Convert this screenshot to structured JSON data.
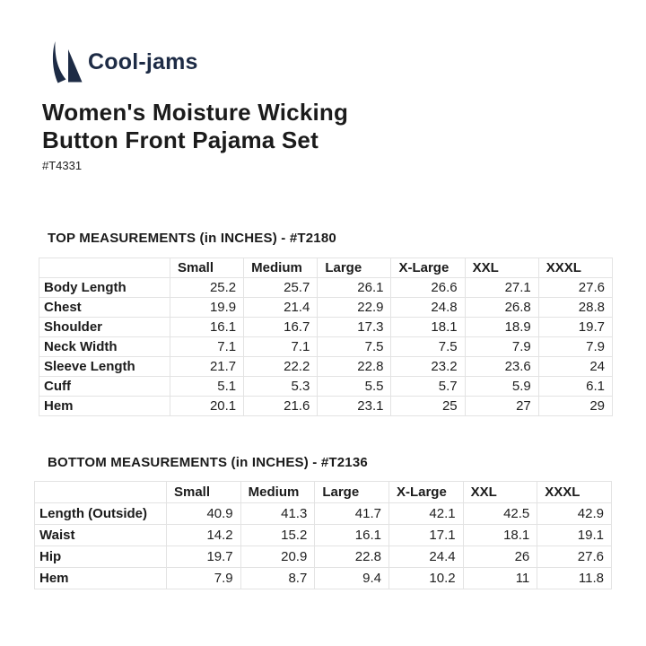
{
  "brand": {
    "name": "Cool-jams",
    "logo_icon": "sailboat-icon",
    "logo_color": "#1d2b45"
  },
  "product": {
    "title_line1": "Women's Moisture Wicking",
    "title_line2": "Button Front Pajama Set",
    "sku": "#T4331"
  },
  "colors": {
    "accent_navy": "#1d2b45",
    "text": "#1c1c1c",
    "table_border": "#e3e3e3",
    "background": "#ffffff"
  },
  "tables": [
    {
      "heading": "TOP MEASUREMENTS (in INCHES) - #T2180",
      "columns": [
        "",
        "Small",
        "Medium",
        "Large",
        "X-Large",
        "XXL",
        "XXXL"
      ],
      "rows": [
        {
          "label": "Body Length",
          "values": [
            "25.2",
            "25.7",
            "26.1",
            "26.6",
            "27.1",
            "27.6"
          ]
        },
        {
          "label": "Chest",
          "values": [
            "19.9",
            "21.4",
            "22.9",
            "24.8",
            "26.8",
            "28.8"
          ]
        },
        {
          "label": "Shoulder",
          "values": [
            "16.1",
            "16.7",
            "17.3",
            "18.1",
            "18.9",
            "19.7"
          ]
        },
        {
          "label": "Neck Width",
          "values": [
            "7.1",
            "7.1",
            "7.5",
            "7.5",
            "7.9",
            "7.9"
          ]
        },
        {
          "label": "Sleeve Length",
          "values": [
            "21.7",
            "22.2",
            "22.8",
            "23.2",
            "23.6",
            "24"
          ]
        },
        {
          "label": "Cuff",
          "values": [
            "5.1",
            "5.3",
            "5.5",
            "5.7",
            "5.9",
            "6.1"
          ]
        },
        {
          "label": "Hem",
          "values": [
            "20.1",
            "21.6",
            "23.1",
            "25",
            "27",
            "29"
          ]
        }
      ]
    },
    {
      "heading": "BOTTOM MEASUREMENTS (in INCHES) - #T2136",
      "columns": [
        "",
        "Small",
        "Medium",
        "Large",
        "X-Large",
        "XXL",
        "XXXL"
      ],
      "rows": [
        {
          "label": "Length (Outside)",
          "values": [
            "40.9",
            "41.3",
            "41.7",
            "42.1",
            "42.5",
            "42.9"
          ]
        },
        {
          "label": "Waist",
          "values": [
            "14.2",
            "15.2",
            "16.1",
            "17.1",
            "18.1",
            "19.1"
          ]
        },
        {
          "label": "Hip",
          "values": [
            "19.7",
            "20.9",
            "22.8",
            "24.4",
            "26",
            "27.6"
          ]
        },
        {
          "label": "Hem",
          "values": [
            "7.9",
            "8.7",
            "9.4",
            "10.2",
            "11",
            "11.8"
          ]
        }
      ]
    }
  ]
}
